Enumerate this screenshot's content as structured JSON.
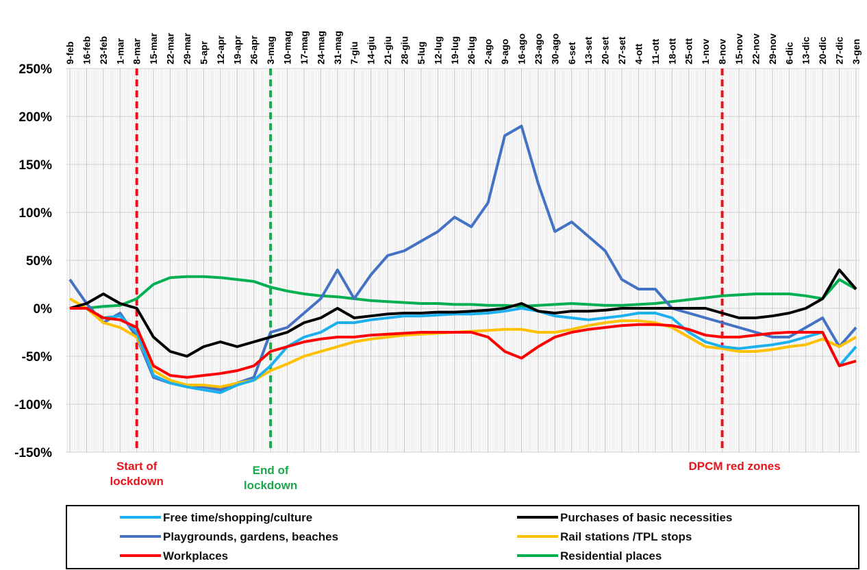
{
  "chart_data": {
    "type": "line",
    "categories": [
      "9-feb",
      "16-feb",
      "23-feb",
      "1-mar",
      "8-mar",
      "15-mar",
      "22-mar",
      "29-mar",
      "5-apr",
      "12-apr",
      "19-apr",
      "26-apr",
      "3-mag",
      "10-mag",
      "17-mag",
      "24-mag",
      "31-mag",
      "7-giu",
      "14-giu",
      "21-giu",
      "28-giu",
      "5-lug",
      "12-lug",
      "19-lug",
      "26-lug",
      "2-ago",
      "9-ago",
      "16-ago",
      "23-ago",
      "30-ago",
      "6-set",
      "13-set",
      "20-set",
      "27-set",
      "4-ott",
      "11-ott",
      "18-ott",
      "25-ott",
      "1-nov",
      "8-nov",
      "15-nov",
      "22-nov",
      "29-nov",
      "6-dic",
      "13-dic",
      "20-dic",
      "27-dic",
      "3-gen"
    ],
    "series": [
      {
        "name": "Free time/shopping/culture",
        "color": "#1cb0ef",
        "values": [
          0,
          0,
          -10,
          -8,
          -25,
          -70,
          -78,
          -82,
          -85,
          -88,
          -80,
          -75,
          -60,
          -40,
          -30,
          -25,
          -15,
          -15,
          -12,
          -10,
          -8,
          -8,
          -7,
          -6,
          -6,
          -5,
          -3,
          0,
          -3,
          -8,
          -10,
          -12,
          -10,
          -8,
          -5,
          -5,
          -10,
          -25,
          -35,
          -40,
          -42,
          -40,
          -38,
          -35,
          -30,
          -25,
          -60,
          -40
        ]
      },
      {
        "name": "Playgrounds, gardens, beaches",
        "color": "#4472c4",
        "values": [
          30,
          5,
          -15,
          -5,
          -30,
          -72,
          -78,
          -80,
          -82,
          -85,
          -78,
          -72,
          -25,
          -20,
          -5,
          10,
          40,
          10,
          35,
          55,
          60,
          70,
          80,
          95,
          85,
          110,
          180,
          190,
          130,
          80,
          90,
          75,
          60,
          30,
          20,
          20,
          0,
          -5,
          -10,
          -15,
          -20,
          -25,
          -30,
          -30,
          -20,
          -10,
          -40,
          -20
        ]
      },
      {
        "name": "Workplaces",
        "color": "#ff0000",
        "values": [
          0,
          0,
          -10,
          -12,
          -20,
          -60,
          -70,
          -72,
          -70,
          -68,
          -65,
          -60,
          -45,
          -40,
          -35,
          -32,
          -30,
          -30,
          -28,
          -27,
          -26,
          -25,
          -25,
          -25,
          -25,
          -30,
          -45,
          -52,
          -40,
          -30,
          -25,
          -22,
          -20,
          -18,
          -17,
          -17,
          -18,
          -22,
          -28,
          -30,
          -30,
          -28,
          -26,
          -25,
          -25,
          -25,
          -60,
          -55
        ]
      },
      {
        "name": "Purchases of basic necessities",
        "color": "#000000",
        "values": [
          0,
          5,
          15,
          5,
          0,
          -30,
          -45,
          -50,
          -40,
          -35,
          -40,
          -35,
          -30,
          -25,
          -15,
          -10,
          0,
          -10,
          -8,
          -6,
          -5,
          -5,
          -4,
          -4,
          -3,
          -2,
          0,
          5,
          -3,
          -5,
          -3,
          -3,
          -2,
          0,
          0,
          0,
          0,
          0,
          0,
          -5,
          -10,
          -10,
          -8,
          -5,
          0,
          10,
          40,
          20
        ]
      },
      {
        "name": "Rail stations /TPL stops",
        "color": "#ffc000",
        "values": [
          10,
          0,
          -15,
          -20,
          -30,
          -65,
          -75,
          -80,
          -80,
          -82,
          -78,
          -75,
          -65,
          -58,
          -50,
          -45,
          -40,
          -35,
          -32,
          -30,
          -28,
          -27,
          -26,
          -25,
          -24,
          -23,
          -22,
          -22,
          -25,
          -25,
          -22,
          -18,
          -15,
          -13,
          -13,
          -15,
          -20,
          -30,
          -40,
          -42,
          -45,
          -45,
          -43,
          -40,
          -38,
          -32,
          -40,
          -30
        ]
      },
      {
        "name": "Residential places",
        "color": "#00b050",
        "values": [
          0,
          0,
          2,
          3,
          10,
          25,
          32,
          33,
          33,
          32,
          30,
          28,
          22,
          18,
          15,
          13,
          12,
          10,
          8,
          7,
          6,
          5,
          5,
          4,
          4,
          3,
          3,
          2,
          3,
          4,
          5,
          4,
          3,
          3,
          4,
          5,
          7,
          9,
          11,
          13,
          14,
          15,
          15,
          15,
          13,
          10,
          30,
          20
        ]
      }
    ],
    "ylim": [
      -150,
      250
    ],
    "yticks": [
      {
        "value": -150,
        "label": "-150%"
      },
      {
        "value": -100,
        "label": "-100%"
      },
      {
        "value": -50,
        "label": "-50%"
      },
      {
        "value": 0,
        "label": "0%"
      },
      {
        "value": 50,
        "label": "50%"
      },
      {
        "value": 100,
        "label": "100%"
      },
      {
        "value": 150,
        "label": "150%"
      },
      {
        "value": 200,
        "label": "200%"
      },
      {
        "value": 250,
        "label": "250%"
      }
    ],
    "grid": true,
    "annotations": [
      {
        "text": "Start of lockdown",
        "at": "8-mar",
        "color": "#e8141b"
      },
      {
        "text": "End of lockdown",
        "at": "3-mag",
        "color": "#1aa84b"
      },
      {
        "text": "DPCM red zones",
        "at": "8-nov",
        "color": "#e8141b"
      }
    ]
  }
}
